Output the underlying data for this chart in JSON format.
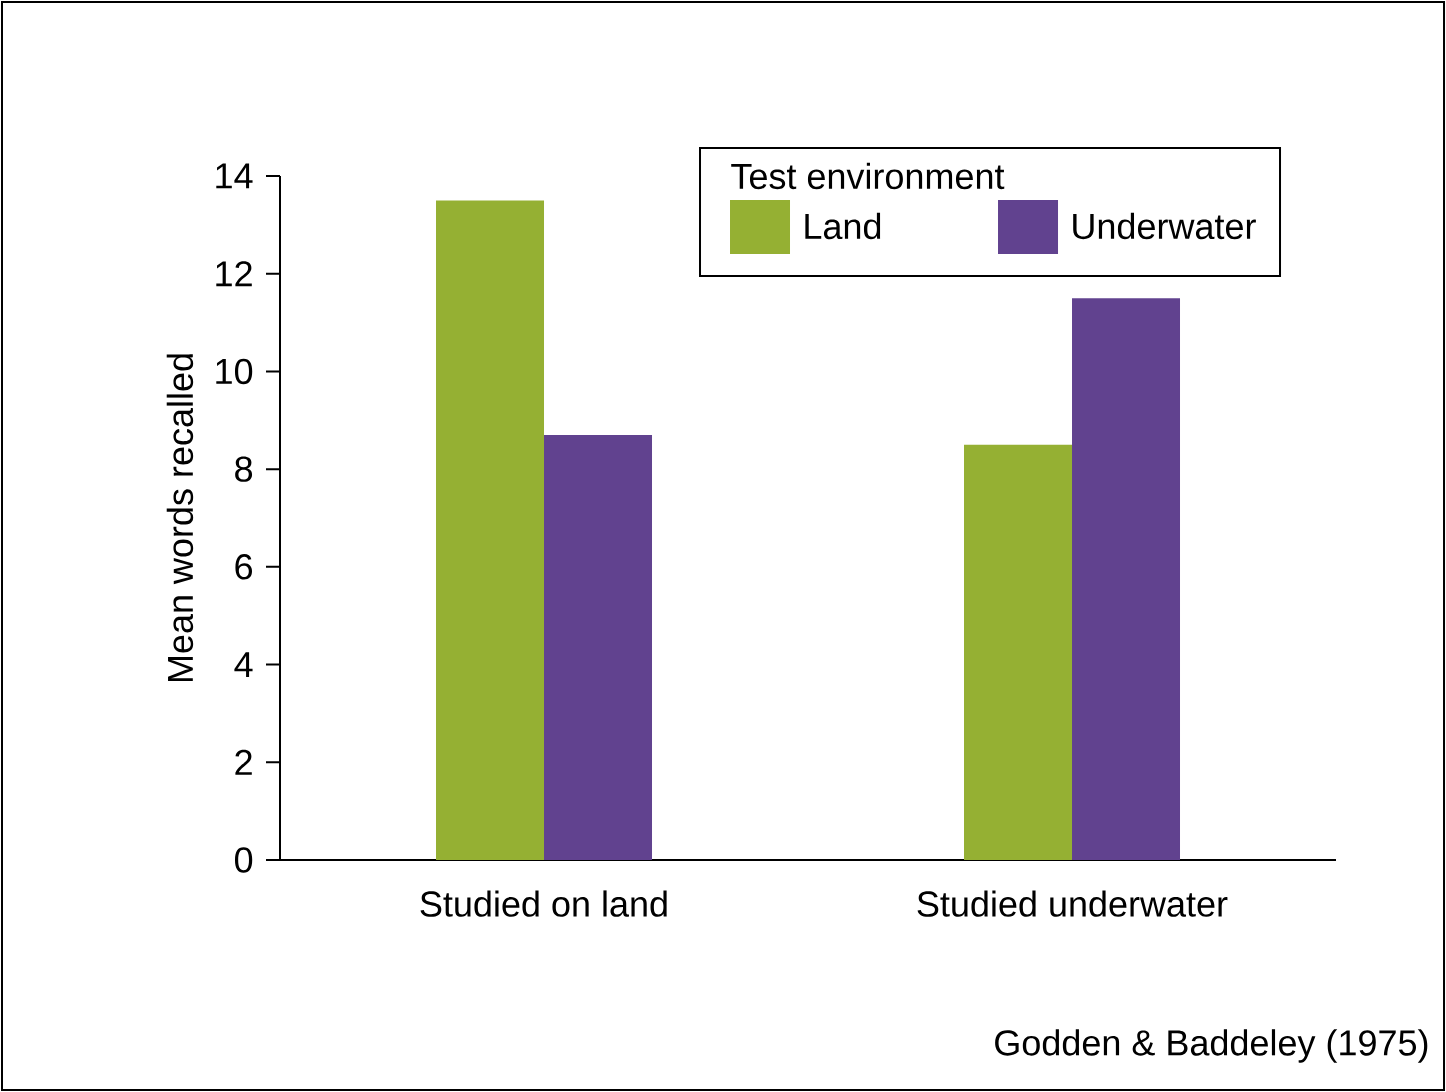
{
  "chart_data": {
    "type": "bar",
    "ylabel": "Mean words recalled",
    "legend_title": "Test environment",
    "categories": [
      "Studied on land",
      "Studied underwater"
    ],
    "series": [
      {
        "name": "Land",
        "color": "#95b033",
        "values": [
          13.5,
          8.5
        ]
      },
      {
        "name": "Underwater",
        "color": "#61428f",
        "values": [
          8.7,
          11.5
        ]
      }
    ],
    "ylim": [
      0,
      14
    ],
    "yticks": [
      0,
      2,
      4,
      6,
      8,
      10,
      12,
      14
    ],
    "grid": false,
    "legend": "top right",
    "annotations": [
      "Godden & Baddeley (1975)"
    ]
  }
}
